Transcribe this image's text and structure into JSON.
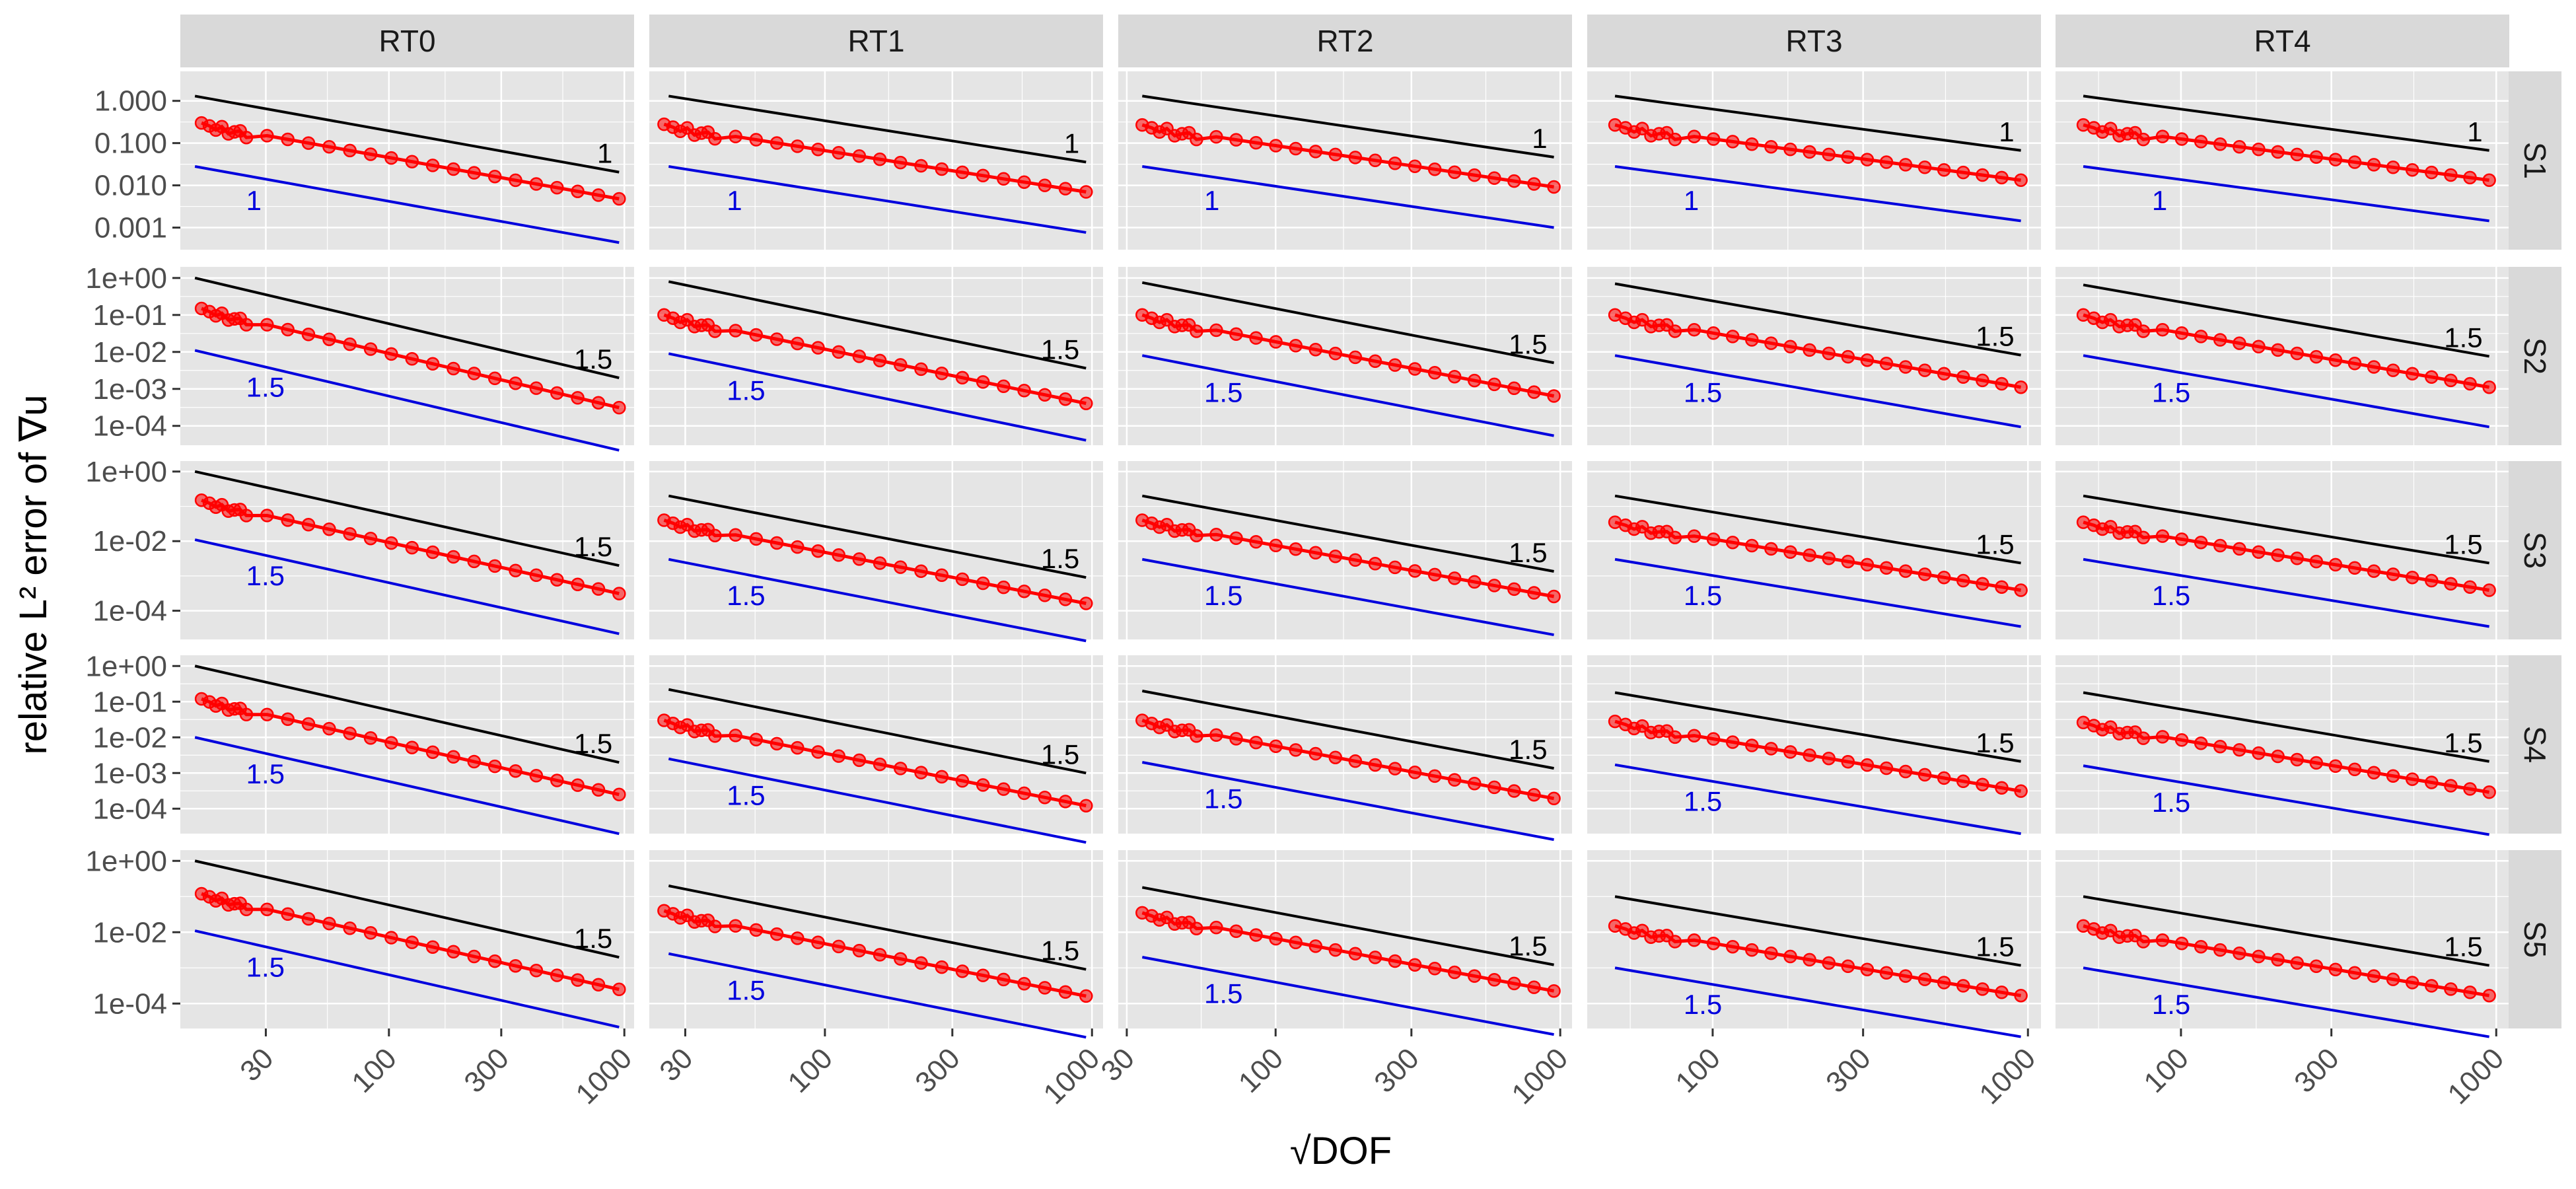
{
  "colors": {
    "panel_bg": "#E5E5E5",
    "grid_major": "#FFFFFF",
    "strip_bg": "#D9D9D9",
    "data": "#FF0000",
    "ref_upper": "#000000",
    "ref_lower": "#0000DD"
  },
  "chart_data": {
    "type": "scatter",
    "title": "",
    "xlabel": "√DOF",
    "ylabel": "relative L² error of ∇u",
    "xscale": "log10",
    "yscale": "log10",
    "column_labels": [
      "RT0",
      "RT1",
      "RT2",
      "RT3",
      "RT4"
    ],
    "row_labels": [
      "S1",
      "S2",
      "S3",
      "S4",
      "S5"
    ],
    "x_ticks": [
      30,
      100,
      300,
      1000
    ],
    "x_tick_labels": [
      "30",
      "100",
      "300",
      "1000"
    ],
    "column_xlim": [
      [
        13,
        1100
      ],
      [
        22,
        1100
      ],
      [
        28,
        1100
      ],
      [
        40,
        1100
      ],
      [
        40,
        1100
      ]
    ],
    "rows": [
      {
        "label": "S1",
        "ylim": [
          0.0003,
          5
        ],
        "y_ticks": [
          0.001,
          0.01,
          0.1,
          1
        ],
        "y_tick_labels": [
          "0.001",
          "0.010",
          "0.100",
          "1.000"
        ],
        "rate": 1,
        "rate_label": "1",
        "start_error": [
          0.3,
          0.28,
          0.27,
          0.27,
          0.27
        ],
        "upper_ref_start": [
          1.3,
          1.3,
          1.3,
          1.3,
          1.3
        ],
        "lower_ref_start": [
          0.028,
          0.028,
          0.028,
          0.028,
          0.028
        ]
      },
      {
        "label": "S2",
        "ylim": [
          3e-05,
          2
        ],
        "y_ticks": [
          0.0001,
          0.001,
          0.01,
          0.1,
          1
        ],
        "y_tick_labels": [
          "1e-04",
          "1e-03",
          "1e-02",
          "1e-01",
          "1e+00"
        ],
        "rate": 1.5,
        "rate_label": "1.5",
        "start_error": [
          0.15,
          0.1,
          0.1,
          0.1,
          0.1
        ],
        "upper_ref_start": [
          1.0,
          0.8,
          0.75,
          0.7,
          0.65
        ],
        "lower_ref_start": [
          0.011,
          0.009,
          0.008,
          0.008,
          0.008
        ]
      },
      {
        "label": "S3",
        "ylim": [
          1.5e-05,
          2
        ],
        "y_ticks": [
          0.0001,
          0.01,
          1
        ],
        "y_tick_labels": [
          "1e-04",
          "1e-02",
          "1e+00"
        ],
        "rate": 1.5,
        "rate_label": "1.5",
        "start_error": [
          0.15,
          0.04,
          0.04,
          0.035,
          0.035
        ],
        "upper_ref_start": [
          1.0,
          0.2,
          0.2,
          0.2,
          0.2
        ],
        "lower_ref_start": [
          0.011,
          0.003,
          0.003,
          0.003,
          0.003
        ]
      },
      {
        "label": "S4",
        "ylim": [
          2e-05,
          2
        ],
        "y_ticks": [
          0.0001,
          0.001,
          0.01,
          0.1,
          1
        ],
        "y_tick_labels": [
          "1e-04",
          "1e-03",
          "1e-02",
          "1e-01",
          "1e+00"
        ],
        "rate": 1.5,
        "rate_label": "1.5",
        "start_error": [
          0.12,
          0.03,
          0.03,
          0.028,
          0.026
        ],
        "upper_ref_start": [
          1.0,
          0.22,
          0.2,
          0.18,
          0.18
        ],
        "lower_ref_start": [
          0.01,
          0.0025,
          0.002,
          0.0017,
          0.0016
        ]
      },
      {
        "label": "S5",
        "ylim": [
          2e-05,
          2
        ],
        "y_ticks": [
          0.0001,
          0.01,
          1
        ],
        "y_tick_labels": [
          "1e-04",
          "1e-02",
          "1e+00"
        ],
        "rate": 1.5,
        "rate_label": "1.5",
        "start_error": [
          0.12,
          0.04,
          0.035,
          0.015,
          0.015
        ],
        "upper_ref_start": [
          1.0,
          0.2,
          0.18,
          0.1,
          0.1
        ],
        "lower_ref_start": [
          0.011,
          0.0025,
          0.002,
          0.001,
          0.001
        ]
      }
    ],
    "columns": [
      {
        "label": "RT0",
        "x_start": 16,
        "ref_x_start": 15,
        "x_end": 950
      },
      {
        "label": "RT1",
        "x_start": 25,
        "ref_x_start": 26,
        "x_end": 950
      },
      {
        "label": "RT2",
        "x_start": 34,
        "ref_x_start": 34,
        "x_end": 950
      },
      {
        "label": "RT3",
        "x_start": 49,
        "ref_x_start": 49,
        "x_end": 950
      },
      {
        "label": "RT4",
        "x_start": 49,
        "ref_x_start": 49,
        "x_end": 950
      }
    ],
    "series_note": "Each panel: red points (relative error vs sqrt(DOF)) with slope-rate decay, plus black upper and blue lower reference lines labelled with the rate."
  }
}
